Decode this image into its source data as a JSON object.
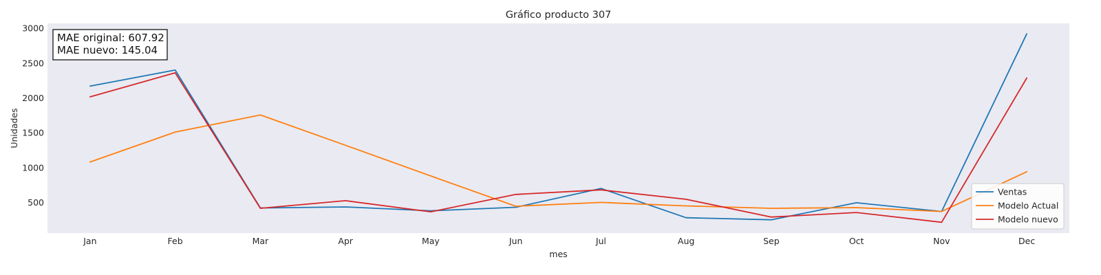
{
  "chart_data": {
    "type": "line",
    "title": "Gráfico producto 307",
    "xlabel": "mes",
    "ylabel": "Unidades",
    "categories": [
      "Jan",
      "Feb",
      "Mar",
      "Apr",
      "May",
      "Jun",
      "Jul",
      "Aug",
      "Sep",
      "Oct",
      "Nov",
      "Dec"
    ],
    "y_ticks": [
      500,
      1000,
      1500,
      2000,
      2500,
      3000
    ],
    "ylim": [
      60,
      3070
    ],
    "grid": false,
    "legend_position": "lower-right",
    "background_color": "#eaeaf2",
    "annotation": {
      "line1": "MAE original: 607.92",
      "line2": "MAE nuevo: 145.04"
    },
    "series": [
      {
        "name": "Ventas",
        "color": "#1f77b4",
        "values": [
          2170,
          2400,
          420,
          435,
          380,
          430,
          700,
          280,
          250,
          495,
          370,
          2920
        ]
      },
      {
        "name": "Modelo Actual",
        "color": "#ff7f0e",
        "values": [
          1080,
          1510,
          1755,
          1320,
          880,
          445,
          500,
          450,
          415,
          425,
          370,
          940
        ]
      },
      {
        "name": "Modelo nuevo",
        "color": "#d62728",
        "values": [
          2015,
          2360,
          415,
          525,
          365,
          615,
          680,
          545,
          290,
          355,
          215,
          2285
        ]
      }
    ]
  }
}
